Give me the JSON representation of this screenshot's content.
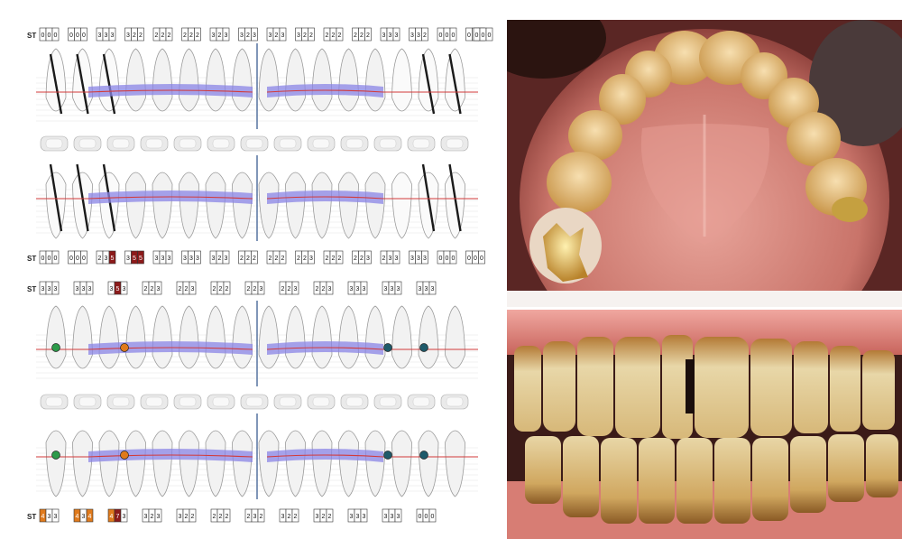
{
  "chart": {
    "st_label": "ST",
    "rows": [
      {
        "label": "ST",
        "groups": [
          [
            "0",
            "0",
            "0"
          ],
          [
            "0",
            "0",
            "0"
          ],
          [
            "3",
            "3",
            "3"
          ],
          [
            "3",
            "2",
            "2"
          ],
          [
            "2",
            "2",
            "2"
          ],
          [
            "2",
            "2",
            "2"
          ],
          [
            "3",
            "2",
            "3"
          ],
          [
            "3",
            "2",
            "3"
          ],
          [
            "3",
            "2",
            "3"
          ],
          [
            "3",
            "2",
            "2"
          ],
          [
            "2",
            "2",
            "2"
          ],
          [
            "2",
            "2",
            "2"
          ],
          [
            "3",
            "3",
            "3"
          ],
          [
            "3",
            "3",
            "2"
          ],
          [
            "0",
            "0",
            "0"
          ],
          [
            "0",
            "0",
            "0"
          ],
          [
            "0",
            "0",
            "0"
          ]
        ]
      },
      {
        "label": "ST",
        "groups": [
          [
            "0",
            "0",
            "0"
          ],
          [
            "0",
            "0",
            "0"
          ],
          [
            "2",
            "3",
            "5"
          ],
          [
            "3",
            "5",
            "5"
          ],
          [
            "3",
            "3",
            "3"
          ],
          [
            "3",
            "3",
            "3"
          ],
          [
            "3",
            "2",
            "3"
          ],
          [
            "2",
            "2",
            "2"
          ],
          [
            "2",
            "2",
            "2"
          ],
          [
            "2",
            "2",
            "3"
          ],
          [
            "2",
            "2",
            "2"
          ],
          [
            "2",
            "2",
            "3"
          ],
          [
            "2",
            "3",
            "3"
          ],
          [
            "3",
            "3",
            "3"
          ],
          [
            "0",
            "0",
            "0"
          ],
          [
            "0",
            "0",
            "0"
          ]
        ]
      },
      {
        "label": "ST",
        "groups": [
          [
            "3",
            "3",
            "3"
          ],
          [
            "3",
            "3",
            "3"
          ],
          [
            "3",
            "5",
            "3"
          ],
          [
            "2",
            "2",
            "3"
          ],
          [
            "2",
            "2",
            "3"
          ],
          [
            "2",
            "2",
            "2"
          ],
          [
            "2",
            "2",
            "3"
          ],
          [
            "2",
            "2",
            "3"
          ],
          [
            "2",
            "2",
            "3"
          ],
          [
            "3",
            "3",
            "3"
          ],
          [
            "3",
            "3",
            "3"
          ],
          [
            "3",
            "3",
            "3"
          ]
        ]
      },
      {
        "label": "ST",
        "groups": [
          [
            "4",
            "3",
            "3"
          ],
          [
            "4",
            "3",
            "4"
          ],
          [
            "4",
            "7",
            "3"
          ],
          [
            "3",
            "2",
            "3"
          ],
          [
            "3",
            "2",
            "2"
          ],
          [
            "2",
            "2",
            "2"
          ],
          [
            "2",
            "3",
            "2"
          ],
          [
            "3",
            "2",
            "2"
          ],
          [
            "3",
            "2",
            "2"
          ],
          [
            "3",
            "3",
            "3"
          ],
          [
            "3",
            "3",
            "3"
          ],
          [
            "0",
            "0",
            "0"
          ]
        ]
      }
    ],
    "colors": {
      "band": "#8a84e6",
      "margin_line": "#d23a3a",
      "implant_stroke": "#1a1a1a",
      "highlight_orange": "#e07a1c",
      "highlight_red": "#8c1a1a",
      "tooth_fill": "#f2f2f2",
      "furcation_green": "#2d9a4a"
    },
    "icons": [
      "tooth-icon",
      "implant-marker-icon",
      "furcation-icon"
    ]
  }
}
